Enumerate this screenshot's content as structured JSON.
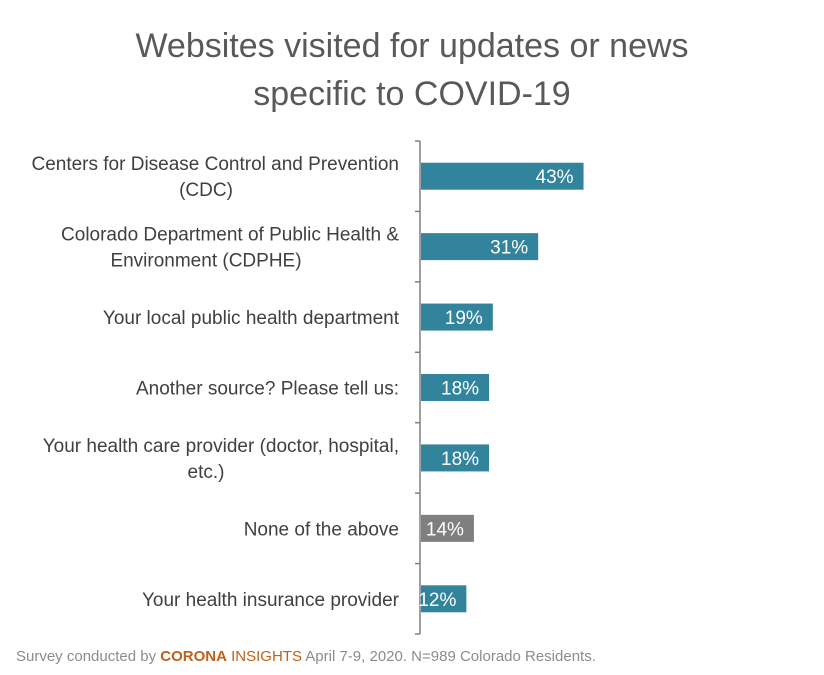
{
  "chart_data": {
    "type": "bar",
    "orientation": "horizontal",
    "title_lines": [
      "Websites visited for updates or news",
      "specific to COVID-19"
    ],
    "categories": [
      [
        "Centers for Disease Control and Prevention",
        "(CDC)"
      ],
      [
        "Colorado Department of Public Health &",
        "Environment (CDPHE)"
      ],
      [
        "Your local public health department"
      ],
      [
        "Another source? Please tell us:"
      ],
      [
        "Your health care provider (doctor, hospital,",
        "etc.)"
      ],
      [
        "None of the above"
      ],
      [
        "Your health insurance provider"
      ]
    ],
    "values": [
      43,
      31,
      19,
      18,
      18,
      14,
      12
    ],
    "value_labels": [
      "43%",
      "31%",
      "19%",
      "18%",
      "18%",
      "14%",
      "12%"
    ],
    "bar_colors": [
      "#31849b",
      "#31849b",
      "#31849b",
      "#31849b",
      "#31849b",
      "#7f7f7f",
      "#31849b"
    ],
    "xlim": [
      0,
      100
    ],
    "grid": false,
    "legend": false
  },
  "footnote": {
    "prefix": "Survey conducted by ",
    "brand_part1": "CORONA",
    "brand_part2": " INSIGHTS",
    "suffix": " April 7-9, 2020. N=989 Colorado Residents."
  }
}
